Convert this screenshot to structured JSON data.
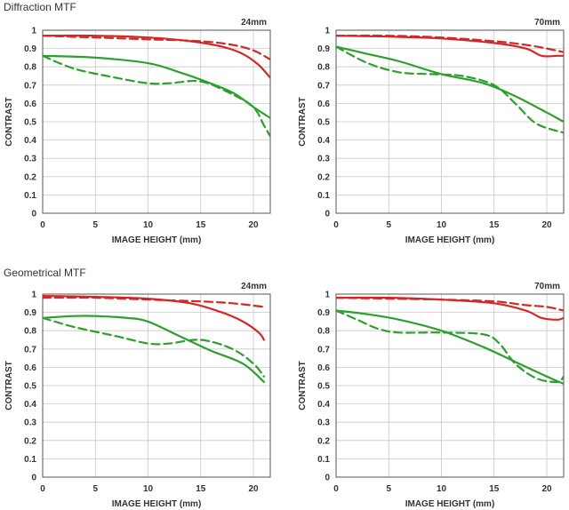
{
  "sections": [
    {
      "title": "Diffraction MTF"
    },
    {
      "title": "Geometrical MTF"
    }
  ],
  "colors": {
    "red": "#d62728",
    "green": "#2ca02c",
    "grid": "#c8c8c8"
  },
  "chart_data": [
    {
      "type": "line",
      "section": "Diffraction MTF",
      "focal_length": "24mm",
      "xlabel": "IMAGE HEIGHT (mm)",
      "ylabel": "CONTRAST",
      "xlim": [
        0,
        21.6
      ],
      "ylim": [
        0,
        1
      ],
      "xticks": [
        "0",
        "5",
        "10",
        "15",
        "20"
      ],
      "yticks": [
        "0",
        "0.1",
        "0.2",
        "0.3",
        "0.4",
        "0.5",
        "0.6",
        "0.7",
        "0.8",
        "0.9",
        "1"
      ],
      "grid": true,
      "series": [
        {
          "name": "red-solid",
          "color": "red",
          "dash": false,
          "x": [
            0,
            5,
            10,
            14,
            17,
            19,
            20.5,
            21.6
          ],
          "y": [
            0.97,
            0.97,
            0.96,
            0.94,
            0.91,
            0.87,
            0.81,
            0.74
          ]
        },
        {
          "name": "red-dashed",
          "color": "red",
          "dash": true,
          "x": [
            0,
            5,
            10,
            15,
            18,
            20,
            21.6
          ],
          "y": [
            0.97,
            0.96,
            0.95,
            0.94,
            0.92,
            0.89,
            0.84
          ]
        },
        {
          "name": "green-solid",
          "color": "green",
          "dash": false,
          "x": [
            0,
            5,
            10,
            13,
            15,
            18,
            20,
            21.6
          ],
          "y": [
            0.86,
            0.85,
            0.82,
            0.77,
            0.73,
            0.66,
            0.58,
            0.52
          ]
        },
        {
          "name": "green-dashed",
          "color": "green",
          "dash": true,
          "x": [
            0,
            3,
            7,
            10,
            12,
            15,
            18,
            20,
            21,
            21.6
          ],
          "y": [
            0.86,
            0.79,
            0.74,
            0.71,
            0.71,
            0.72,
            0.65,
            0.58,
            0.48,
            0.42
          ]
        }
      ]
    },
    {
      "type": "line",
      "section": "Diffraction MTF",
      "focal_length": "70mm",
      "xlabel": "IMAGE HEIGHT (mm)",
      "ylabel": "CONTRAST",
      "xlim": [
        0,
        21.6
      ],
      "ylim": [
        0,
        1
      ],
      "xticks": [
        "0",
        "5",
        "10",
        "15",
        "20"
      ],
      "yticks": [
        "0",
        "0.1",
        "0.2",
        "0.3",
        "0.4",
        "0.5",
        "0.6",
        "0.7",
        "0.8",
        "0.9",
        "1"
      ],
      "grid": true,
      "series": [
        {
          "name": "red-solid",
          "color": "red",
          "dash": false,
          "x": [
            0,
            5,
            10,
            15,
            18,
            19.5,
            21,
            21.6
          ],
          "y": [
            0.97,
            0.965,
            0.955,
            0.93,
            0.9,
            0.86,
            0.86,
            0.86
          ]
        },
        {
          "name": "red-dashed",
          "color": "red",
          "dash": true,
          "x": [
            0,
            5,
            10,
            15,
            18,
            20,
            21.6
          ],
          "y": [
            0.97,
            0.97,
            0.96,
            0.94,
            0.92,
            0.9,
            0.88
          ]
        },
        {
          "name": "green-solid",
          "color": "green",
          "dash": false,
          "x": [
            0,
            3,
            6,
            10,
            14,
            17,
            20,
            21.6
          ],
          "y": [
            0.91,
            0.87,
            0.83,
            0.76,
            0.71,
            0.64,
            0.55,
            0.5
          ]
        },
        {
          "name": "green-dashed",
          "color": "green",
          "dash": true,
          "x": [
            0,
            3,
            6,
            9,
            12,
            15,
            17,
            19,
            21.6
          ],
          "y": [
            0.91,
            0.82,
            0.77,
            0.76,
            0.75,
            0.7,
            0.6,
            0.49,
            0.44
          ]
        }
      ]
    },
    {
      "type": "line",
      "section": "Geometrical MTF",
      "focal_length": "24mm",
      "xlabel": "IMAGE HEIGHT (mm)",
      "ylabel": "CONTRAST",
      "xlim": [
        0,
        21.6
      ],
      "ylim": [
        0,
        1
      ],
      "xticks": [
        "0",
        "5",
        "10",
        "15",
        "20"
      ],
      "yticks": [
        "0",
        "0.1",
        "0.2",
        "0.3",
        "0.4",
        "0.5",
        "0.6",
        "0.7",
        "0.8",
        "0.9",
        "1"
      ],
      "grid": true,
      "series": [
        {
          "name": "red-solid",
          "color": "red",
          "dash": false,
          "x": [
            0,
            5,
            10,
            14,
            17,
            19,
            20.5,
            21
          ],
          "y": [
            0.99,
            0.985,
            0.975,
            0.95,
            0.9,
            0.85,
            0.79,
            0.75
          ]
        },
        {
          "name": "red-dashed",
          "color": "red",
          "dash": true,
          "x": [
            0,
            5,
            10,
            15,
            18,
            21
          ],
          "y": [
            0.98,
            0.98,
            0.97,
            0.96,
            0.95,
            0.93
          ]
        },
        {
          "name": "green-solid",
          "color": "green",
          "dash": false,
          "x": [
            0,
            3,
            5,
            8,
            10,
            13,
            16,
            19,
            21
          ],
          "y": [
            0.87,
            0.88,
            0.88,
            0.87,
            0.85,
            0.77,
            0.69,
            0.62,
            0.52
          ]
        },
        {
          "name": "green-dashed",
          "color": "green",
          "dash": true,
          "x": [
            0,
            3,
            7,
            10,
            12,
            15,
            18,
            20,
            21
          ],
          "y": [
            0.87,
            0.82,
            0.77,
            0.73,
            0.73,
            0.75,
            0.7,
            0.62,
            0.55
          ]
        }
      ]
    },
    {
      "type": "line",
      "section": "Geometrical MTF",
      "focal_length": "70mm",
      "xlabel": "IMAGE HEIGHT (mm)",
      "ylabel": "CONTRAST",
      "xlim": [
        0,
        21.6
      ],
      "ylim": [
        0,
        1
      ],
      "xticks": [
        "0",
        "5",
        "10",
        "15",
        "20"
      ],
      "yticks": [
        "0",
        "0.1",
        "0.2",
        "0.3",
        "0.4",
        "0.5",
        "0.6",
        "0.7",
        "0.8",
        "0.9",
        "1"
      ],
      "grid": true,
      "series": [
        {
          "name": "red-solid",
          "color": "red",
          "dash": false,
          "x": [
            0,
            5,
            10,
            15,
            18,
            19.5,
            21,
            21.6
          ],
          "y": [
            0.98,
            0.98,
            0.97,
            0.95,
            0.91,
            0.87,
            0.86,
            0.87
          ]
        },
        {
          "name": "red-dashed",
          "color": "red",
          "dash": true,
          "x": [
            0,
            5,
            10,
            15,
            18,
            20,
            21.6
          ],
          "y": [
            0.98,
            0.975,
            0.97,
            0.96,
            0.94,
            0.93,
            0.91
          ]
        },
        {
          "name": "green-solid",
          "color": "green",
          "dash": false,
          "x": [
            0,
            3,
            6,
            10,
            14,
            17,
            20,
            21.6
          ],
          "y": [
            0.91,
            0.89,
            0.86,
            0.8,
            0.71,
            0.63,
            0.55,
            0.51
          ]
        },
        {
          "name": "green-dashed",
          "color": "green",
          "dash": true,
          "x": [
            0,
            2,
            4,
            6,
            10,
            14,
            15.5,
            17,
            19,
            21,
            21.6
          ],
          "y": [
            0.91,
            0.86,
            0.81,
            0.79,
            0.79,
            0.78,
            0.73,
            0.62,
            0.54,
            0.52,
            0.55
          ]
        }
      ]
    }
  ]
}
